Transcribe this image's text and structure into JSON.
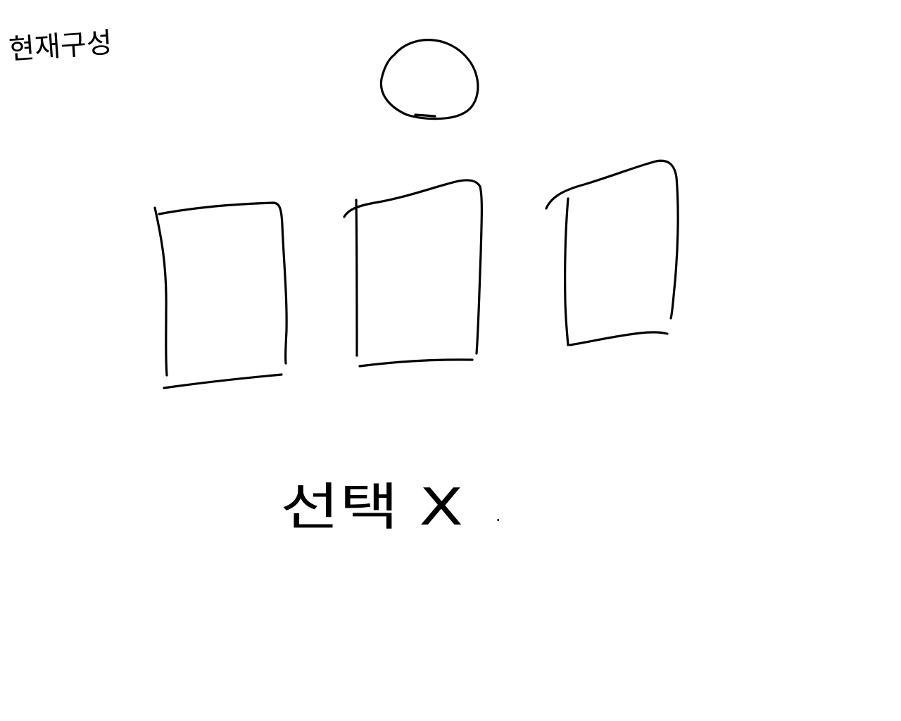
{
  "sketch": {
    "title": "현재구성",
    "caption": "선택 X",
    "caption_trailing": ".",
    "ink_color": "#000000",
    "background_color": "#ffffff"
  },
  "shapes": {
    "top_node": "circle",
    "columns": [
      "rectangle",
      "rectangle",
      "rectangle"
    ]
  }
}
